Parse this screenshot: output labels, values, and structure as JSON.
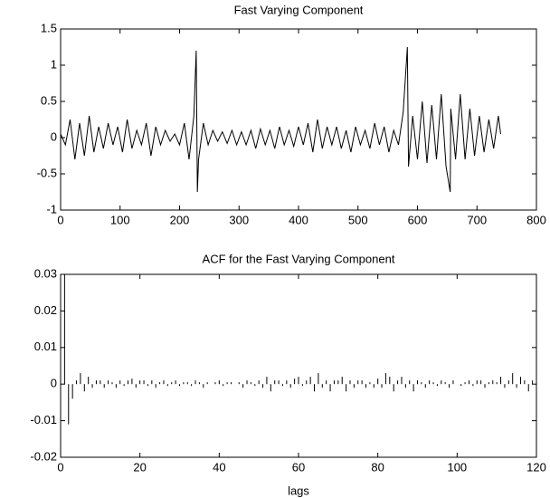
{
  "chart_data": [
    {
      "type": "line",
      "title": "Fast Varying Component",
      "color": "#000000",
      "x": [
        0,
        8,
        16,
        24,
        32,
        40,
        48,
        56,
        64,
        72,
        80,
        88,
        96,
        104,
        112,
        120,
        128,
        136,
        144,
        152,
        160,
        168,
        176,
        184,
        192,
        200,
        208,
        216,
        224,
        228,
        230,
        232,
        240,
        248,
        256,
        264,
        272,
        280,
        288,
        296,
        304,
        312,
        320,
        328,
        336,
        344,
        352,
        360,
        368,
        376,
        384,
        392,
        400,
        408,
        416,
        424,
        432,
        440,
        448,
        456,
        464,
        472,
        480,
        488,
        496,
        504,
        512,
        520,
        528,
        536,
        544,
        552,
        560,
        568,
        576,
        583,
        585,
        592,
        600,
        608,
        616,
        624,
        632,
        640,
        648,
        655,
        656,
        664,
        672,
        680,
        688,
        696,
        704,
        712,
        720,
        728,
        736,
        740
      ],
      "values": [
        0.05,
        -0.1,
        0.25,
        -0.3,
        0.2,
        -0.25,
        0.3,
        -0.2,
        0.15,
        -0.15,
        0.2,
        -0.1,
        0.15,
        -0.2,
        0.25,
        -0.15,
        0.1,
        -0.1,
        0.2,
        -0.25,
        0.15,
        -0.1,
        0.1,
        -0.05,
        0.05,
        -0.1,
        0.2,
        -0.3,
        0.3,
        1.2,
        -0.75,
        -0.3,
        0.2,
        -0.1,
        0.1,
        -0.05,
        0.08,
        -0.08,
        0.1,
        -0.1,
        0.08,
        -0.1,
        0.1,
        -0.15,
        0.12,
        -0.1,
        0.1,
        -0.15,
        0.15,
        -0.1,
        0.1,
        -0.12,
        0.15,
        -0.1,
        0.2,
        -0.2,
        0.25,
        -0.15,
        0.15,
        -0.1,
        0.15,
        -0.15,
        0.1,
        -0.2,
        0.15,
        -0.1,
        0.1,
        -0.15,
        0.2,
        -0.1,
        0.15,
        -0.2,
        0.1,
        -0.1,
        0.35,
        1.25,
        -0.4,
        0.3,
        -0.3,
        0.5,
        -0.35,
        0.45,
        -0.3,
        0.6,
        -0.4,
        -0.75,
        0.4,
        -0.3,
        0.6,
        -0.3,
        0.4,
        -0.25,
        0.3,
        -0.2,
        0.25,
        -0.15,
        0.3,
        0.05
      ],
      "xlim": [
        0,
        800
      ],
      "xticks": [
        0,
        100,
        200,
        300,
        400,
        500,
        600,
        700,
        800
      ],
      "ylim": [
        -1,
        1.5
      ],
      "yticks": [
        -1,
        -0.5,
        0,
        0.5,
        1,
        1.5
      ]
    },
    {
      "type": "stem",
      "title": "ACF for the Fast Varying Component",
      "xlabel": "lags",
      "color": "#000000",
      "x": [
        1,
        2,
        3,
        4,
        5,
        6,
        7,
        8,
        9,
        10,
        11,
        12,
        13,
        14,
        15,
        16,
        17,
        18,
        19,
        20,
        21,
        22,
        23,
        24,
        25,
        26,
        27,
        28,
        29,
        30,
        31,
        32,
        33,
        34,
        35,
        36,
        37,
        38,
        39,
        40,
        41,
        42,
        43,
        44,
        45,
        46,
        47,
        48,
        49,
        50,
        51,
        52,
        53,
        54,
        55,
        56,
        57,
        58,
        59,
        60,
        61,
        62,
        63,
        64,
        65,
        66,
        67,
        68,
        69,
        70,
        71,
        72,
        73,
        74,
        75,
        76,
        77,
        78,
        79,
        80,
        81,
        82,
        83,
        84,
        85,
        86,
        87,
        88,
        89,
        90,
        91,
        92,
        93,
        94,
        95,
        96,
        97,
        98,
        99,
        100,
        101,
        102,
        103,
        104,
        105,
        106,
        107,
        108,
        109,
        110,
        111,
        112,
        113,
        114,
        115,
        116,
        117,
        118,
        119,
        120
      ],
      "values": [
        0.03,
        -0.011,
        -0.004,
        0.001,
        0.003,
        -0.002,
        0.002,
        -0.001,
        0.001,
        0.001,
        -0.001,
        0.001,
        0.0005,
        -0.001,
        0.001,
        -0.0005,
        0.001,
        0.0015,
        -0.001,
        0.001,
        0.001,
        -0.0005,
        0.001,
        -0.001,
        0.0005,
        0.001,
        -0.0005,
        0.0005,
        0.001,
        -0.0005,
        0.0005,
        0.0005,
        -0.0005,
        0.001,
        0.0005,
        -0.001,
        0.0005,
        0,
        0.0005,
        0.001,
        -0.0005,
        0.0005,
        0.0005,
        0,
        0.0005,
        -0.001,
        0.001,
        0.0005,
        -0.0005,
        0.001,
        -0.001,
        0.002,
        -0.002,
        0.001,
        0.001,
        -0.0005,
        0.001,
        -0.001,
        0.0015,
        0.002,
        -0.0005,
        0.001,
        0.002,
        -0.002,
        0.003,
        -0.001,
        0.001,
        -0.002,
        0.001,
        0.001,
        0.002,
        -0.002,
        0.001,
        -0.001,
        0.001,
        0.001,
        -0.001,
        0.0005,
        -0.001,
        0.0015,
        -0.001,
        0.003,
        0.002,
        -0.002,
        0.001,
        0.002,
        -0.001,
        0.001,
        -0.002,
        0.001,
        0.0005,
        -0.001,
        0.001,
        0.0005,
        -0.0005,
        0.001,
        0.0005,
        -0.001,
        0.001,
        0,
        -0.0005,
        0.0005,
        0.001,
        -0.0005,
        0.001,
        0.001,
        -0.001,
        0.0005,
        0.001,
        0.0005,
        0.002,
        -0.001,
        0.001,
        0.003,
        -0.001,
        0.002,
        0.001,
        -0.002,
        0.001,
        0.0005
      ],
      "xlim": [
        0,
        120
      ],
      "xticks": [
        0,
        20,
        40,
        60,
        80,
        100,
        120
      ],
      "ylim": [
        -0.02,
        0.03
      ],
      "yticks": [
        -0.02,
        -0.01,
        0,
        0.01,
        0.02,
        0.03
      ]
    }
  ]
}
